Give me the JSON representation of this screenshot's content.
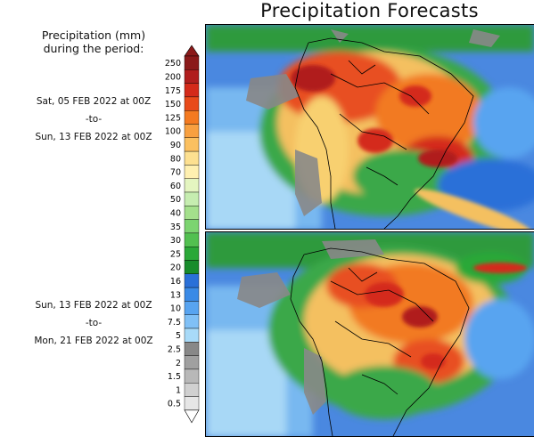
{
  "title": "Precipitation Forecasts",
  "legend": {
    "title_line1": "Precipitation (mm)",
    "title_line2": "during the period:",
    "labels": [
      "250",
      "200",
      "175",
      "150",
      "125",
      "100",
      "90",
      "80",
      "70",
      "60",
      "50",
      "40",
      "35",
      "30",
      "25",
      "20",
      "16",
      "13",
      "10",
      "7.5",
      "5",
      "2.5",
      "2",
      "1.5",
      "1",
      "0.5"
    ],
    "colors": [
      "#8b1a1a",
      "#b01e1e",
      "#d42a1a",
      "#e84a1a",
      "#f47a20",
      "#f8a040",
      "#fbc060",
      "#fde090",
      "#fff0b0",
      "#e4f5c0",
      "#c6edb0",
      "#a4e08c",
      "#7cd470",
      "#52c050",
      "#2aa838",
      "#188c2c",
      "#2a70d8",
      "#3a8ae6",
      "#58a4f0",
      "#80c0f6",
      "#a8daf8",
      "#888888",
      "#a0a0a0",
      "#b8b8b8",
      "#d0d0d0",
      "#e6e6e6"
    ]
  },
  "periods": [
    {
      "start": "Sat, 05 FEB 2022 at 00Z",
      "sep": "-to-",
      "end": "Sun, 13 FEB 2022 at 00Z"
    },
    {
      "start": "Sun, 13 FEB 2022 at 00Z",
      "sep": "-to-",
      "end": "Mon, 21 FEB 2022 at 00Z"
    }
  ]
}
